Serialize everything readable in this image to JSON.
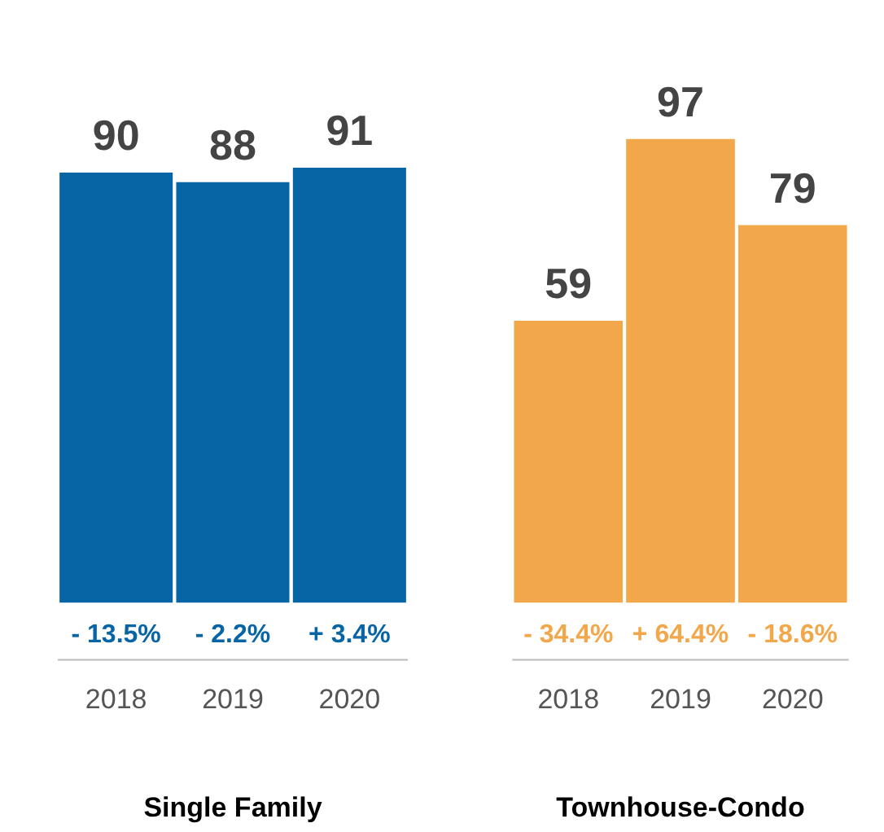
{
  "chart_data": [
    {
      "type": "bar",
      "xlabel": "Single Family",
      "categories": [
        "2018",
        "2019",
        "2020"
      ],
      "values": [
        90,
        88,
        91
      ],
      "color": "#0765a6",
      "data_labels": true,
      "annotations": [
        {
          "text": "- 13.5%",
          "x": "2018",
          "y": 0
        },
        {
          "text": "- 2.2%",
          "x": "2019",
          "y": 0
        },
        {
          "text": "+ 3.4%",
          "x": "2020",
          "y": 0
        }
      ]
    },
    {
      "type": "bar",
      "xlabel": "Townhouse-Condo",
      "categories": [
        "2018",
        "2019",
        "2020"
      ],
      "values": [
        59,
        97,
        79
      ],
      "color": "#f2a74a",
      "data_labels": true,
      "annotations": [
        {
          "text": "- 34.4%",
          "x": "2018",
          "y": 0
        },
        {
          "text": "+ 64.4%",
          "x": "2019",
          "y": 0
        },
        {
          "text": "- 18.6%",
          "x": "2020",
          "y": 0
        }
      ]
    }
  ]
}
